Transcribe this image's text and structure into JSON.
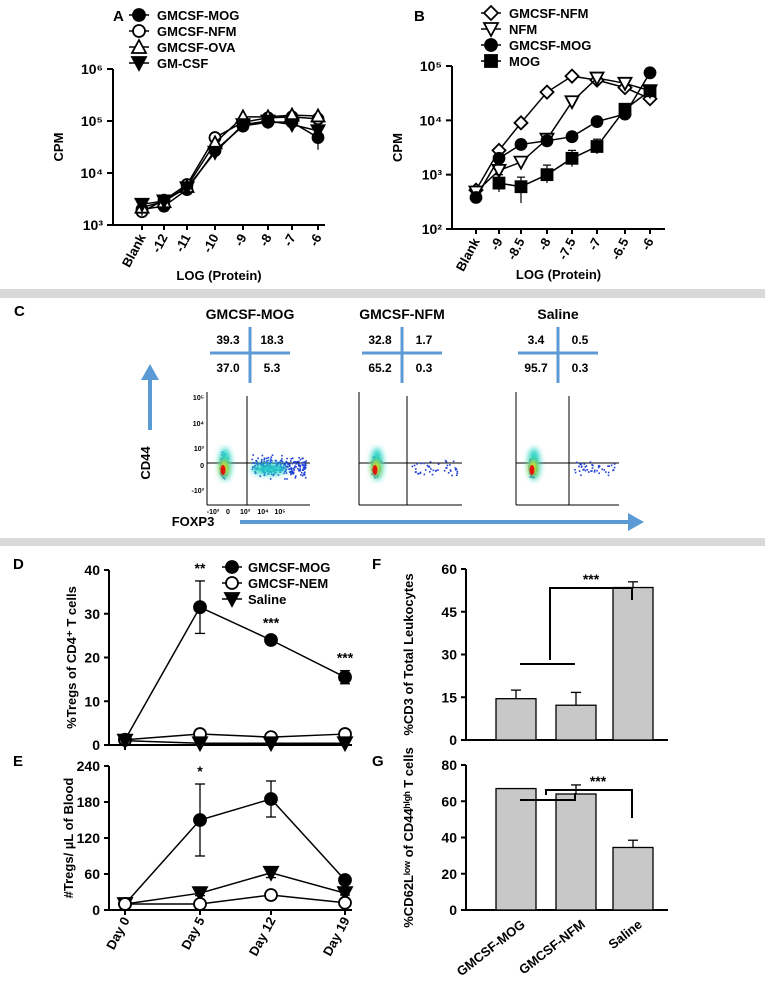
{
  "chart_data": [
    {
      "panel": "A",
      "type": "line",
      "scale": "log",
      "ylabel": "CPM",
      "xlabel": "LOG (Protein)",
      "categories": [
        "Blank",
        "-12",
        "-11",
        "-10",
        "-9",
        "-8",
        "-7",
        "-6"
      ],
      "ytick_labels": [
        "10³",
        "10⁴",
        "10⁵",
        "10⁶"
      ],
      "ylim": [
        1000,
        1000000
      ],
      "series": [
        {
          "name": "GMCSF-MOG",
          "marker": "circle-filled",
          "values": [
            2000,
            2300,
            4800,
            27000,
            80000,
            95000,
            95000,
            48000
          ]
        },
        {
          "name": "GMCSF-NFM",
          "marker": "circle-open",
          "values": [
            1800,
            3000,
            6000,
            48000,
            95000,
            115000,
            120000,
            110000
          ]
        },
        {
          "name": "GMCSF-OVA",
          "marker": "triangle-up-open",
          "values": [
            2200,
            2800,
            5500,
            38000,
            120000,
            120000,
            130000,
            125000
          ]
        },
        {
          "name": "GM-CSF",
          "marker": "triangle-down-filled",
          "values": [
            2500,
            2900,
            5200,
            25000,
            85000,
            100000,
            85000,
            65000
          ]
        }
      ]
    },
    {
      "panel": "B",
      "type": "line",
      "scale": "log",
      "ylabel": "CPM",
      "xlabel": "LOG (Protein)",
      "categories": [
        "Blank",
        "-9",
        "-8.5",
        "-8",
        "-7.5",
        "-7",
        "-6.5",
        "-6"
      ],
      "ytick_labels": [
        "10²",
        "10³",
        "10⁴",
        "10⁵"
      ],
      "ylim": [
        100,
        100000
      ],
      "series": [
        {
          "name": "GMCSF-NFM",
          "marker": "diamond-open",
          "values": [
            520,
            2800,
            9000,
            33000,
            65000,
            55000,
            40000,
            25000
          ]
        },
        {
          "name": "NFM",
          "marker": "triangle-down-open",
          "values": [
            480,
            1200,
            1700,
            4500,
            22000,
            60000,
            48000,
            35000
          ]
        },
        {
          "name": "GMCSF-MOG",
          "marker": "circle-filled",
          "values": [
            380,
            2000,
            3600,
            4200,
            5000,
            9500,
            13000,
            75000
          ]
        },
        {
          "name": "MOG",
          "marker": "square-filled",
          "values": [
            null,
            700,
            600,
            1000,
            2000,
            3300,
            16000,
            35000
          ]
        }
      ]
    },
    {
      "panel": "C",
      "type": "scatter",
      "subtype": "flow-cytometry",
      "xlabel": "FOXP3",
      "ylabel": "CD44",
      "plots": [
        {
          "title": "GMCSF-MOG",
          "quadrants": [
            "39.3",
            "18.3",
            "37.0",
            "5.3"
          ]
        },
        {
          "title": "GMCSF-NFM",
          "quadrants": [
            "32.8",
            "1.7",
            "65.2",
            "0.3"
          ]
        },
        {
          "title": "Saline",
          "quadrants": [
            "3.4",
            "0.5",
            "95.7",
            "0.3"
          ]
        }
      ],
      "y_ticks": [
        "10⁵",
        "10⁴",
        "10³",
        "0",
        "-10³"
      ],
      "x_ticks": [
        "-10³",
        "0",
        "10³",
        "10⁴",
        "10⁵"
      ]
    },
    {
      "panel": "D",
      "type": "line",
      "ylabel": "%Tregs of CD4⁺ T cells",
      "categories": [
        "Day 0",
        "Day 5",
        "Day 12",
        "Day 19"
      ],
      "ylim": [
        0,
        40
      ],
      "yticks": [
        0,
        10,
        20,
        30,
        40
      ],
      "series": [
        {
          "name": "GMCSF-MOG",
          "marker": "circle-filled",
          "values": [
            1.2,
            31.5,
            24,
            15.5
          ],
          "errors": [
            0.4,
            6,
            1,
            1.5
          ]
        },
        {
          "name": "GMCSF-NEM",
          "marker": "circle-open",
          "values": [
            1.2,
            2.5,
            1.8,
            2.5
          ]
        },
        {
          "name": "Saline",
          "marker": "triangle-down-filled",
          "values": [
            1,
            0.4,
            0.4,
            0.4
          ]
        }
      ],
      "annotations": [
        "**",
        "***",
        "***"
      ]
    },
    {
      "panel": "E",
      "type": "line",
      "ylabel": "#Tregs/ µL of Blood",
      "categories": [
        "Day 0",
        "Day 5",
        "Day 12",
        "Day 19"
      ],
      "ylim": [
        0,
        240
      ],
      "yticks": [
        0,
        60,
        120,
        180,
        240
      ],
      "series": [
        {
          "name": "GMCSF-MOG",
          "marker": "circle-filled",
          "values": [
            10,
            150,
            185,
            50
          ],
          "errors": [
            3,
            60,
            30,
            7
          ]
        },
        {
          "name": "Saline",
          "marker": "triangle-down-filled",
          "values": [
            10,
            28,
            62,
            28
          ],
          "errors": [
            2,
            4,
            8,
            3
          ]
        },
        {
          "name": "GMCSF-NEM",
          "marker": "circle-open",
          "values": [
            10,
            10,
            25,
            12
          ]
        }
      ],
      "annotations": [
        "*"
      ]
    },
    {
      "panel": "F",
      "type": "bar",
      "ylabel": "%CD3 of Total Leukocytes",
      "categories": [
        "GMCSF-MOG",
        "GMCSF-NFM",
        "Saline"
      ],
      "values": [
        14.5,
        12.2,
        53.5
      ],
      "errors": [
        3,
        4.5,
        2
      ],
      "ylim": [
        0,
        60
      ],
      "yticks": [
        0,
        15,
        30,
        45,
        60
      ],
      "annotations": [
        "***"
      ]
    },
    {
      "panel": "G",
      "type": "bar",
      "ylabel": "%CD62Lˡᵒʷ of CD44ʰⁱᵍʰ T cells",
      "categories": [
        "GMCSF-MOG",
        "GMCSF-NFM",
        "Saline"
      ],
      "values": [
        67,
        64,
        34.5
      ],
      "errors": [
        0,
        5,
        4
      ],
      "ylim": [
        0,
        80
      ],
      "yticks": [
        0,
        20,
        40,
        60,
        80
      ],
      "annotations": [
        "***"
      ]
    }
  ]
}
